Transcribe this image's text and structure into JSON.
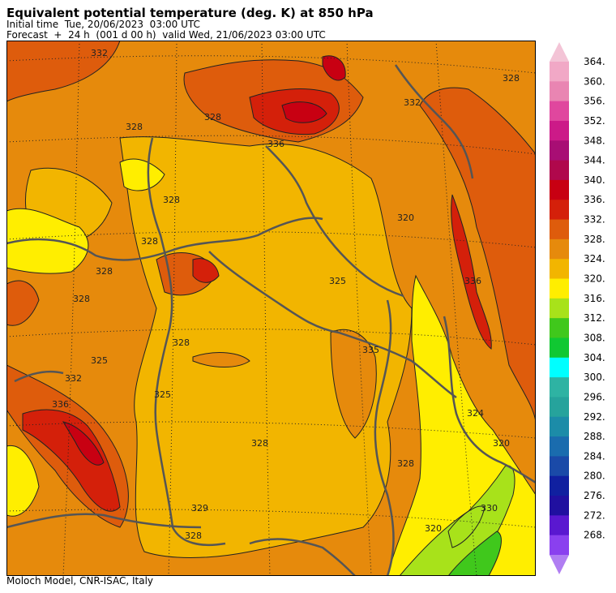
{
  "header": {
    "title": "Equivalent potential temperature (deg. K) at 850 hPa",
    "initial_time": "Initial time  Tue, 20/06/2023  03:00 UTC",
    "forecast": "Forecast  +  24 h  (001 d 00 h)  valid Wed, 21/06/2023 03:00 UTC"
  },
  "footer": "Moloch Model, CNR-ISAC, Italy",
  "colorbar": {
    "labels": [
      "364.",
      "360.",
      "356.",
      "352.",
      "348.",
      "344.",
      "340.",
      "336.",
      "332.",
      "328.",
      "324.",
      "320.",
      "316.",
      "312.",
      "308.",
      "304.",
      "300.",
      "296.",
      "292.",
      "288.",
      "284.",
      "280.",
      "276.",
      "272.",
      "268."
    ],
    "colors": [
      "#f1a8c6",
      "#e985b2",
      "#e0479e",
      "#cc1a88",
      "#a80e74",
      "#b0084c",
      "#c80012",
      "#d4200a",
      "#de5c0c",
      "#e68a0c",
      "#f2b500",
      "#ffee00",
      "#a8e21a",
      "#40c81c",
      "#10c832",
      "#00ffff",
      "#2eb3a3",
      "#26a39c",
      "#1c8ca8",
      "#1a6cae",
      "#1a4aa8",
      "#1020a0",
      "#2010a0",
      "#5a18d0",
      "#8a40ef"
    ],
    "top_arrow_color": "#f3c4d6",
    "bottom_arrow_color": "#b07ef2"
  },
  "map": {
    "contour_labels": [
      "332",
      "328",
      "328",
      "336",
      "328",
      "332",
      "328",
      "320",
      "328",
      "328",
      "328",
      "325",
      "325",
      "332",
      "336",
      "325",
      "328",
      "328",
      "329",
      "328",
      "328",
      "335",
      "336",
      "324",
      "320",
      "330",
      "320"
    ]
  }
}
